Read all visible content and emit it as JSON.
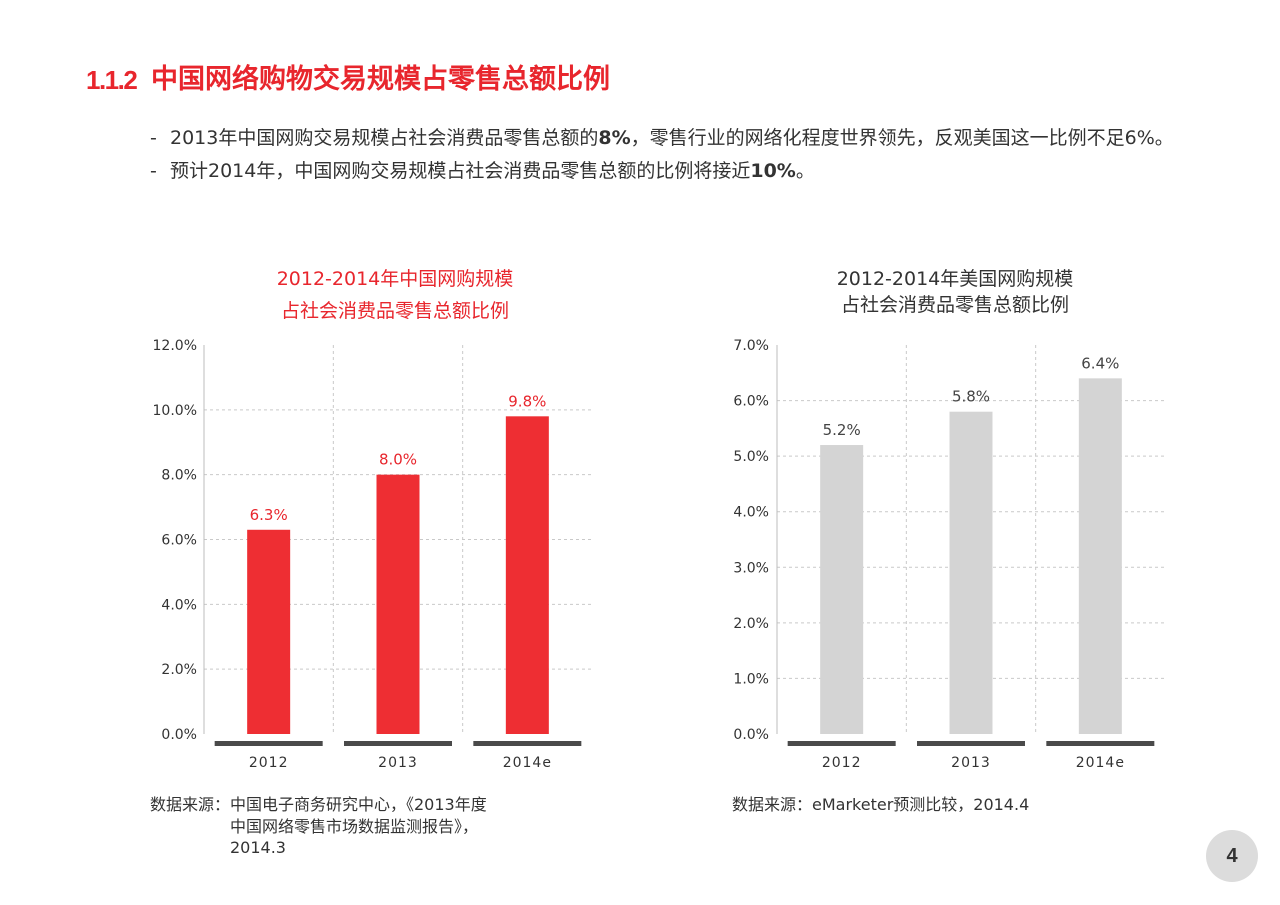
{
  "slide": {
    "section_number": "1.1.2",
    "title": "中国网络购物交易规模占零售总额比例",
    "bullets": [
      {
        "marker": "-",
        "parts": [
          "2013年中国网购交易规模占社会消费品零售总额的",
          "8%",
          "，零售行业的网络化程度世界领先，反观美国这一比例不足6%。"
        ]
      },
      {
        "marker": "-",
        "parts": [
          "预计2014年，中国网购交易规模占社会消费品零售总额的比例将接近",
          "10%",
          "。"
        ]
      }
    ],
    "page_number": "4",
    "colors": {
      "accent": "#e8262d",
      "text": "#333333",
      "page_badge": "#dcdcdc"
    }
  },
  "chart_data": [
    {
      "type": "bar",
      "title": [
        "2012-2014年中国网购规模",
        "占社会消费品零售总额比例"
      ],
      "categories": [
        "2012",
        "2013",
        "2014e"
      ],
      "values": [
        6.3,
        8.0,
        9.8
      ],
      "data_labels": [
        "6.3%",
        "8.0%",
        "9.8%"
      ],
      "ylim": [
        0,
        12
      ],
      "y_ticks": [
        {
          "value": 0,
          "label": "0.0%"
        },
        {
          "value": 2,
          "label": "2.0%"
        },
        {
          "value": 4,
          "label": "4.0%"
        },
        {
          "value": 6,
          "label": "6.0%"
        },
        {
          "value": 8,
          "label": "8.0%"
        },
        {
          "value": 10,
          "label": "10.0%"
        },
        {
          "value": 12,
          "label": "12.0%"
        }
      ],
      "grid": true,
      "bar_color": "#ee2e33",
      "label_color": "#e8262d",
      "title_color": "#e8262d",
      "source": {
        "label": "数据来源：",
        "lines": [
          "中国电子商务研究中心，《2013年度",
          "中国网络零售市场数据监测报告》，",
          "2014.3"
        ]
      }
    },
    {
      "type": "bar",
      "title": [
        "2012-2014年美国网购规模",
        "占社会消费品零售总额比例"
      ],
      "categories": [
        "2012",
        "2013",
        "2014e"
      ],
      "values": [
        5.2,
        5.8,
        6.4
      ],
      "data_labels": [
        "5.2%",
        "5.8%",
        "6.4%"
      ],
      "ylim": [
        0,
        7
      ],
      "y_ticks": [
        {
          "value": 0,
          "label": "0.0%"
        },
        {
          "value": 1,
          "label": "1.0%"
        },
        {
          "value": 2,
          "label": "2.0%"
        },
        {
          "value": 3,
          "label": "3.0%"
        },
        {
          "value": 4,
          "label": "4.0%"
        },
        {
          "value": 5,
          "label": "5.0%"
        },
        {
          "value": 6,
          "label": "6.0%"
        },
        {
          "value": 7,
          "label": "7.0%"
        }
      ],
      "grid": true,
      "bar_color": "#d4d4d4",
      "label_color": "#444444",
      "title_color": "#333333",
      "source": {
        "label": "数据来源：",
        "lines": [
          "eMarketer预测比较，2014.4"
        ]
      }
    }
  ]
}
